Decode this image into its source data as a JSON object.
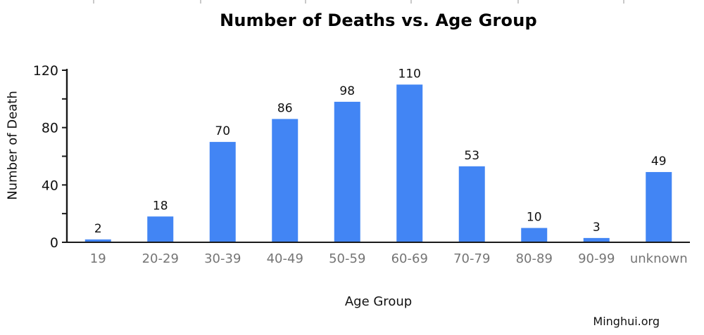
{
  "title": "Number of Deaths vs. Age Group",
  "footer": {
    "brand": "Minghui.org"
  },
  "chart_data": {
    "type": "bar",
    "title": "Number of Deaths vs. Age Group",
    "xlabel": "Age Group",
    "ylabel": "Number of Death",
    "categories": [
      "19",
      "20-29",
      "30-39",
      "40-49",
      "50-59",
      "60-69",
      "70-79",
      "80-89",
      "90-99",
      "unknown"
    ],
    "values": [
      2,
      18,
      70,
      86,
      98,
      110,
      53,
      10,
      3,
      49
    ],
    "ylim": [
      0,
      120
    ],
    "yticks_labeled": [
      0,
      40,
      80,
      120
    ],
    "yticks_minor": [
      20,
      60,
      100
    ],
    "grid": false,
    "legend": false,
    "bar_color": "#4285F4",
    "axis_color": "#1a1a1a",
    "value_label_color": "#111111",
    "tick_label_color": "#111111",
    "category_label_color": "#757575"
  }
}
